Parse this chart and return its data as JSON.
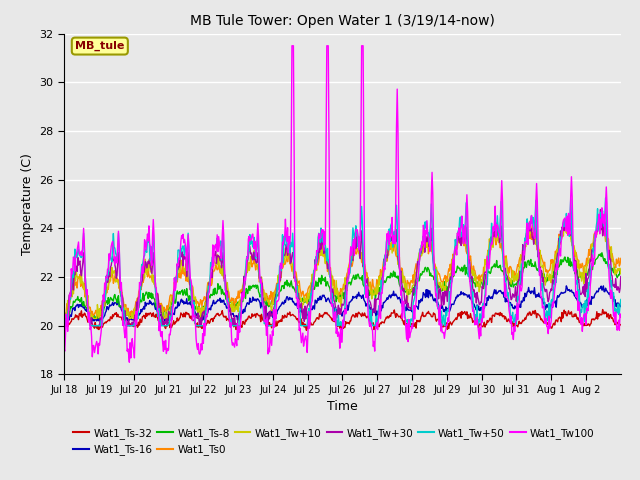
{
  "title": "MB Tule Tower: Open Water 1 (3/19/14-now)",
  "xlabel": "Time",
  "ylabel": "Temperature (C)",
  "ylim": [
    18,
    32
  ],
  "yticks": [
    18,
    20,
    22,
    24,
    26,
    28,
    30,
    32
  ],
  "plot_bg_color": "#e8e8e8",
  "ax_bg_color": "#e8e8e8",
  "series_colors": {
    "Wat1_Ts-32": "#cc0000",
    "Wat1_Ts-16": "#0000bb",
    "Wat1_Ts-8": "#00bb00",
    "Wat1_Ts0": "#ff8800",
    "Wat1_Tw+10": "#cccc00",
    "Wat1_Tw+30": "#aa00aa",
    "Wat1_Tw+50": "#00cccc",
    "Wat1_Tw100": "#ff00ff"
  },
  "annotation_text": "MB_tule",
  "annotation_color": "#880000",
  "annotation_bg": "#ffff99",
  "x_labels": [
    "Jul 18",
    "Jul 19",
    "Jul 20",
    "Jul 21",
    "Jul 22",
    "Jul 23",
    "Jul 24",
    "Jul 25",
    "Jul 26",
    "Jul 27",
    "Jul 28",
    "Jul 29",
    "Jul 30",
    "Jul 31",
    "Aug 1",
    "Aug 2"
  ]
}
